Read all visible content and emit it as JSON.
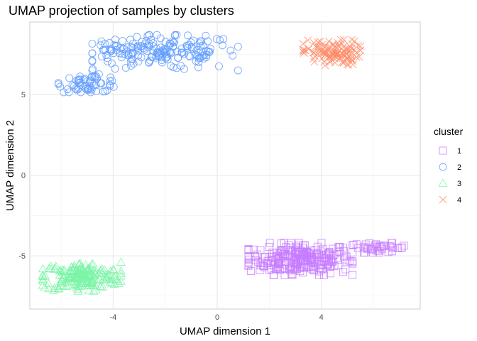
{
  "chart_data": {
    "type": "scatter",
    "title": "UMAP projection of samples by clusters",
    "xlabel": "UMAP dimension 1",
    "ylabel": "UMAP dimension 2",
    "xlim": [
      -7.2,
      7.8
    ],
    "ylim": [
      -8.3,
      9.5
    ],
    "x_ticks": [
      -4,
      0,
      4
    ],
    "y_ticks": [
      -5,
      0,
      5
    ],
    "grid": true,
    "legend": {
      "title": "cluster",
      "position": "right"
    },
    "series": [
      {
        "name": "1",
        "marker": "square",
        "color": "#C77CFF",
        "regions": [
          {
            "cx": 3.2,
            "cy": -5.2,
            "sx": 1.0,
            "sy": 0.5,
            "n": 260
          },
          {
            "cx": 6.2,
            "cy": -4.5,
            "sx": 0.55,
            "sy": 0.15,
            "n": 40
          }
        ]
      },
      {
        "name": "2",
        "marker": "circle",
        "color": "#619CFF",
        "regions": [
          {
            "cx": -2.0,
            "cy": 7.6,
            "sx": 1.4,
            "sy": 0.55,
            "n": 170
          },
          {
            "cx": -4.9,
            "cy": 5.7,
            "sx": 0.6,
            "sy": 0.28,
            "n": 60
          },
          {
            "cx": -4.1,
            "cy": 7.7,
            "sx": 0.4,
            "sy": 0.3,
            "n": 20
          }
        ]
      },
      {
        "name": "3",
        "marker": "triangle",
        "color": "#7CF4A8",
        "regions": [
          {
            "cx": -5.2,
            "cy": -6.3,
            "sx": 0.75,
            "sy": 0.45,
            "n": 200
          }
        ]
      },
      {
        "name": "4",
        "marker": "x",
        "color": "#FF8C69",
        "regions": [
          {
            "cx": 4.4,
            "cy": 7.6,
            "sx": 0.55,
            "sy": 0.4,
            "n": 120
          }
        ]
      }
    ]
  }
}
